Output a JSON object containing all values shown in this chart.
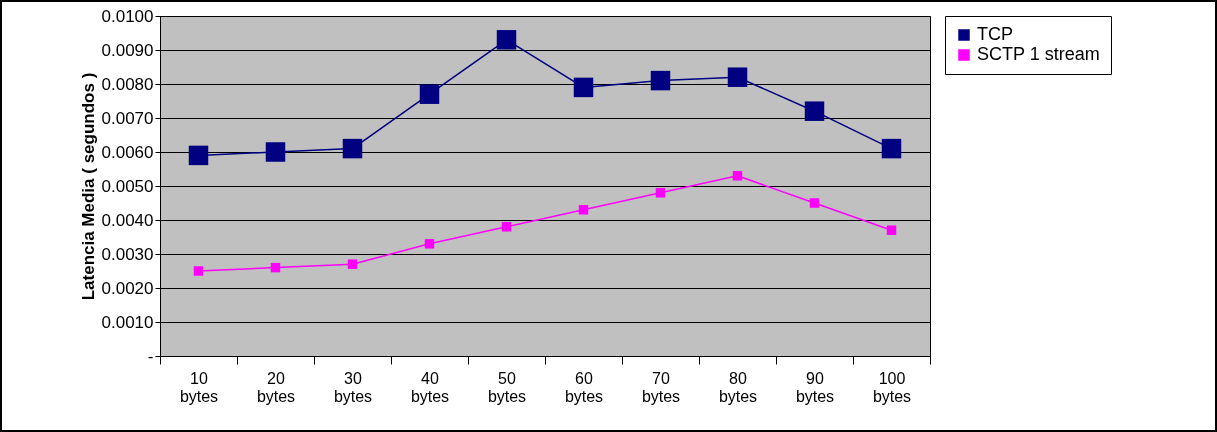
{
  "chart_data": {
    "type": "line",
    "ylabel": "Latencia Media ( segundos )",
    "categories": [
      "10 bytes",
      "20 bytes",
      "30 bytes",
      "40 bytes",
      "50 bytes",
      "60 bytes",
      "70 bytes",
      "80 bytes",
      "90 bytes",
      "100 bytes"
    ],
    "series": [
      {
        "name": "TCP",
        "color": "#000080",
        "values": [
          0.0059,
          0.006,
          0.0061,
          0.0077,
          0.0093,
          0.0079,
          0.0081,
          0.0082,
          0.0072,
          0.0061
        ]
      },
      {
        "name": "SCTP 1 stream",
        "color": "#ff00ff",
        "values": [
          0.0025,
          0.0026,
          0.0027,
          0.0033,
          0.0038,
          0.0043,
          0.0048,
          0.0053,
          0.0045,
          0.0037
        ]
      }
    ],
    "ylim": [
      0,
      0.01
    ],
    "yticks": [
      {
        "value": 0,
        "label": "-"
      },
      {
        "value": 0.001,
        "label": "0.0010"
      },
      {
        "value": 0.002,
        "label": "0.0020"
      },
      {
        "value": 0.003,
        "label": "0.0030"
      },
      {
        "value": 0.004,
        "label": "0.0040"
      },
      {
        "value": 0.005,
        "label": "0.0050"
      },
      {
        "value": 0.006,
        "label": "0.0060"
      },
      {
        "value": 0.007,
        "label": "0.0070"
      },
      {
        "value": 0.008,
        "label": "0.0080"
      },
      {
        "value": 0.009,
        "label": "0.0090"
      },
      {
        "value": 0.01,
        "label": "0.0100"
      }
    ],
    "grid": "y",
    "legend": "right",
    "marker": "square",
    "line_style": "solid"
  }
}
